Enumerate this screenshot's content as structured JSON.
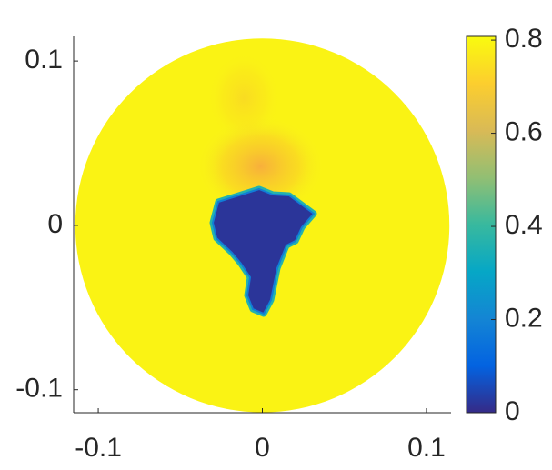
{
  "chart_data": {
    "type": "image",
    "xlim": [
      -0.115,
      0.115
    ],
    "ylim": [
      -0.114,
      0.115
    ],
    "xticks": [
      -0.1,
      0,
      0.1
    ],
    "yticks": [
      -0.1,
      0,
      0.1
    ],
    "clim": [
      0,
      0.808
    ],
    "cticks": [
      0,
      0.2,
      0.4,
      0.6,
      0.8
    ],
    "colormap": [
      "#352a87",
      "#0363e1",
      "#1485d4",
      "#06a7c6",
      "#38b99e",
      "#92bf73",
      "#d9ba56",
      "#fcce2e",
      "#f9fb0e"
    ],
    "disk": {
      "radius": 0.114,
      "value": 0.79
    },
    "inclusion": {
      "value": 0.02
    }
  }
}
